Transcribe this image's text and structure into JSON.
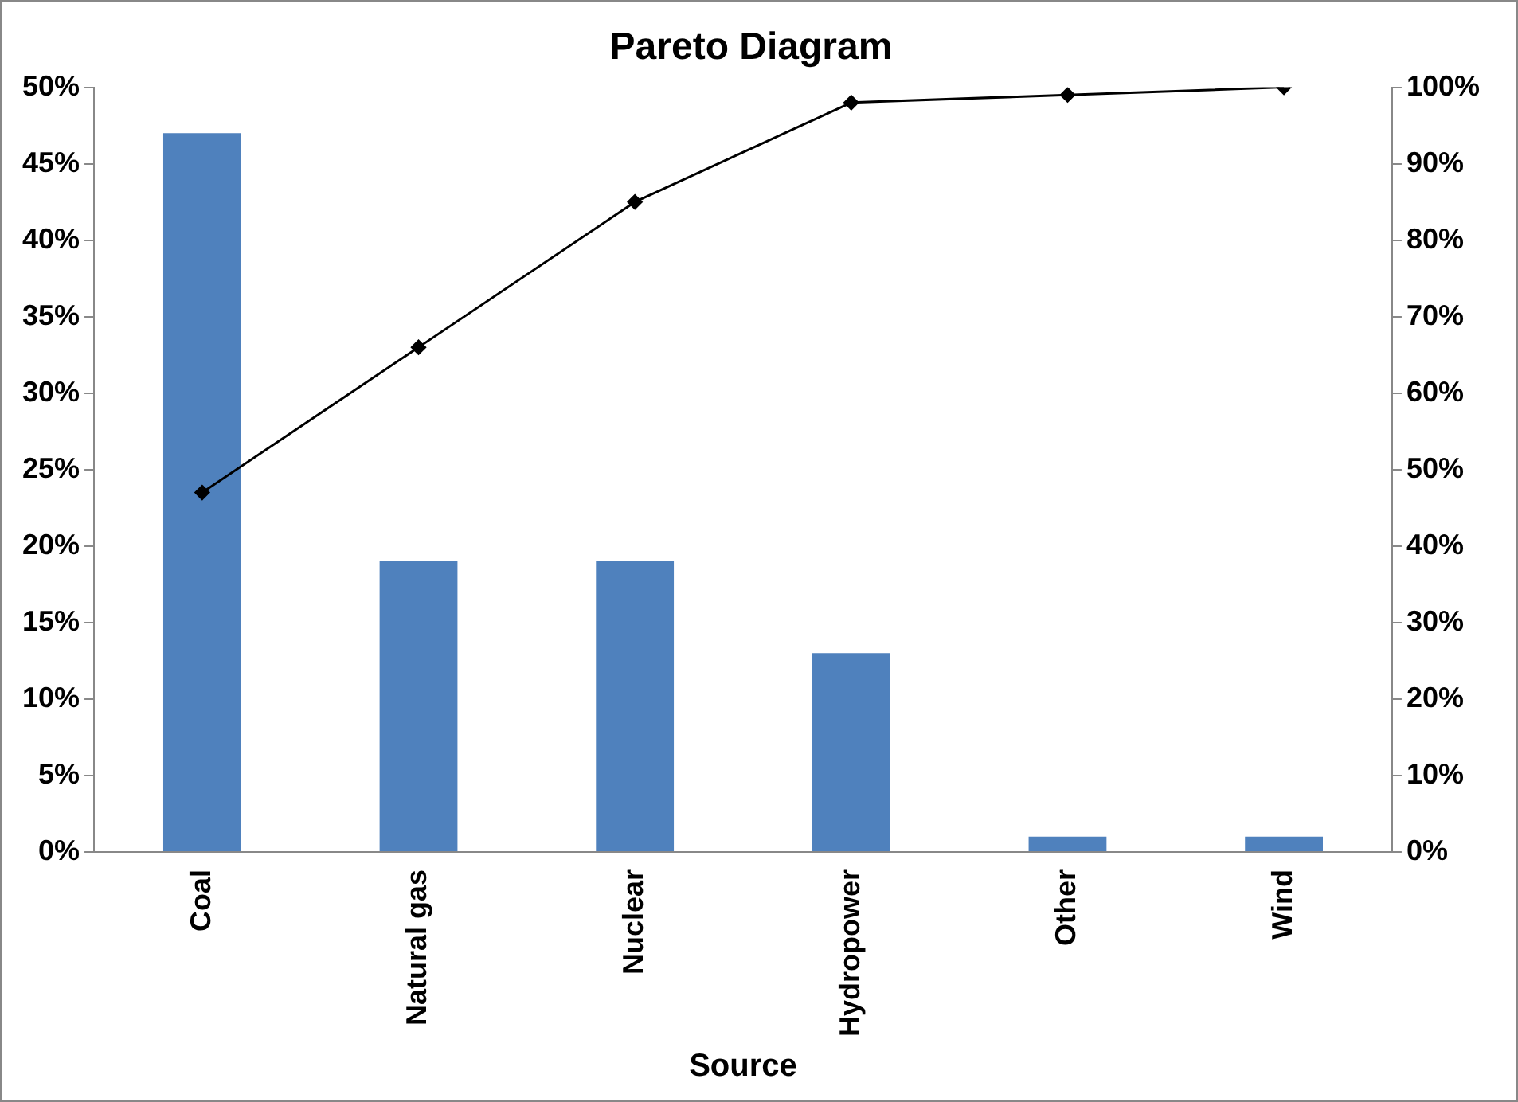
{
  "chart_data": {
    "type": "bar",
    "title": "Pareto Diagram",
    "xlabel": "Source",
    "categories": [
      "Coal",
      "Natural gas",
      "Nuclear",
      "Hydropower",
      "Other",
      "Wind"
    ],
    "series": [
      {
        "color": "#4f81bd",
        "values": [
          47,
          19,
          19,
          13,
          1,
          1
        ]
      },
      {
        "type": "line",
        "axis": "y2",
        "color": "#000000",
        "values": [
          47,
          66,
          85,
          98,
          99,
          100
        ]
      }
    ],
    "ylim": [
      0,
      50
    ],
    "yticks": [
      {
        "value": 0,
        "label": "0%"
      },
      {
        "value": 5,
        "label": "5%"
      },
      {
        "value": 10,
        "label": "10%"
      },
      {
        "value": 15,
        "label": "15%"
      },
      {
        "value": 20,
        "label": "20%"
      },
      {
        "value": 25,
        "label": "25%"
      },
      {
        "value": 30,
        "label": "30%"
      },
      {
        "value": 35,
        "label": "35%"
      },
      {
        "value": 40,
        "label": "40%"
      },
      {
        "value": 45,
        "label": "45%"
      },
      {
        "value": 50,
        "label": "50%"
      }
    ],
    "y2lim": [
      0,
      100
    ],
    "y2ticks": [
      {
        "value": 0,
        "label": "0%"
      },
      {
        "value": 10,
        "label": "10%"
      },
      {
        "value": 20,
        "label": "20%"
      },
      {
        "value": 30,
        "label": "30%"
      },
      {
        "value": 40,
        "label": "40%"
      },
      {
        "value": 50,
        "label": "50%"
      },
      {
        "value": 60,
        "label": "60%"
      },
      {
        "value": 70,
        "label": "70%"
      },
      {
        "value": 80,
        "label": "80%"
      },
      {
        "value": 90,
        "label": "90%"
      },
      {
        "value": 100,
        "label": "100%"
      }
    ],
    "grid": false,
    "legend": false,
    "marker": "diamond",
    "line_style": "solid"
  }
}
